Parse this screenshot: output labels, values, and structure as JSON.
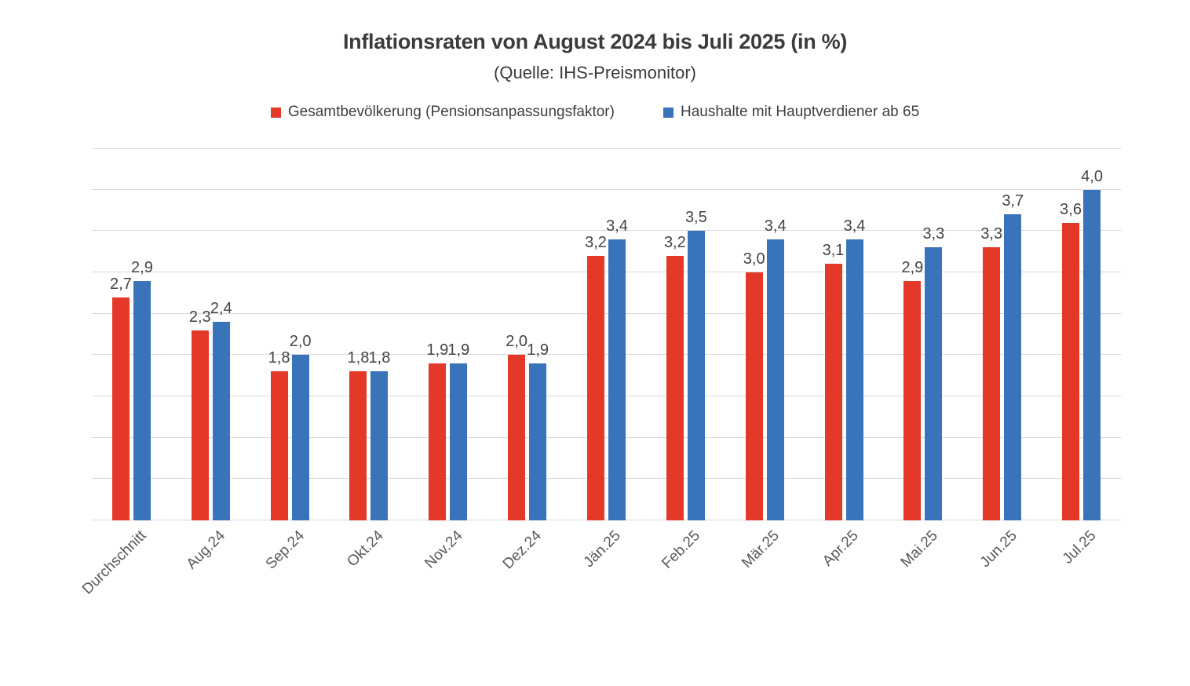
{
  "header": {
    "title": "Inflationsraten von August 2024 bis Juli 2025 (in %)",
    "subtitle": "(Quelle: IHS-Preismonitor)"
  },
  "legend": {
    "items": [
      {
        "label": "Gesamtbevölkerung (Pensionsanpassungsfaktor)",
        "color": "#e43829"
      },
      {
        "label": "Haushalte mit Hauptverdiener ab 65",
        "color": "#3973ba"
      }
    ]
  },
  "chart_data": {
    "type": "bar",
    "title": "Inflationsraten von August 2024 bis Juli 2025 (in %)",
    "subtitle": "(Quelle: IHS-Preismonitor)",
    "categories": [
      "Durchschnitt",
      "Aug.24",
      "Sep.24",
      "Okt.24",
      "Nov.24",
      "Dez.24",
      "Jän.25",
      "Feb.25",
      "Mär.25",
      "Apr.25",
      "Mai.25",
      "Jun.25",
      "Jul.25"
    ],
    "series": [
      {
        "name": "Gesamtbevölkerung (Pensionsanpassungsfaktor)",
        "color": "#e43829",
        "values": [
          2.7,
          2.3,
          1.8,
          1.8,
          1.9,
          2.0,
          3.2,
          3.2,
          3.0,
          3.1,
          2.9,
          3.3,
          3.6
        ],
        "labels": [
          "2,7",
          "2,3",
          "1,8",
          "1,8",
          "1,9",
          "2,0",
          "3,2",
          "3,2",
          "3,0",
          "3,1",
          "2,9",
          "3,3",
          "3,6"
        ]
      },
      {
        "name": "Haushalte mit Hauptverdiener ab 65",
        "color": "#3973ba",
        "values": [
          2.9,
          2.4,
          2.0,
          1.8,
          1.9,
          1.9,
          3.4,
          3.5,
          3.4,
          3.4,
          3.3,
          3.7,
          4.0
        ],
        "labels": [
          "2,9",
          "2,4",
          "2,0",
          "1,8",
          "1,9",
          "1,9",
          "3,4",
          "3,5",
          "3,4",
          "3,4",
          "3,3",
          "3,7",
          "4,0"
        ]
      }
    ],
    "xlabel": "",
    "ylabel": "",
    "ylim": [
      0,
      4.5
    ],
    "gridline_step": 0.5,
    "grid": true,
    "gridline_color": "#d9d9d9",
    "legend_position": "top",
    "data_labels": true,
    "decimal_separator": ","
  }
}
